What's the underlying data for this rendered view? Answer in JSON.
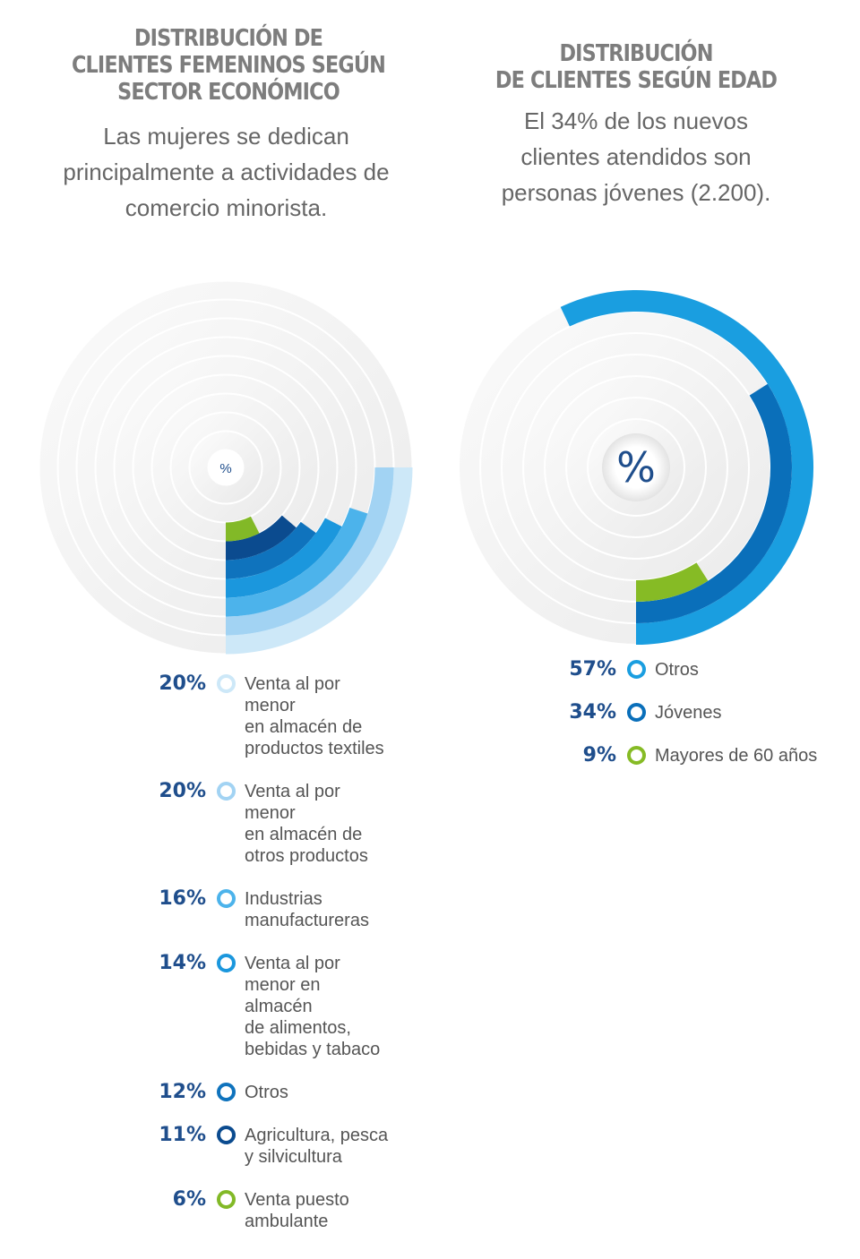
{
  "chart_data": [
    {
      "type": "radial-bar",
      "title_lines": [
        "DISTRIBUCIÓN DE",
        "CLIENTES FEMENINOS SEGÚN",
        "SECTOR ECONÓMICO"
      ],
      "subtitle_lines": [
        "Las mujeres se dedican",
        "principalmente a actividades de",
        "comercio minorista."
      ],
      "center_label": "%",
      "unit": "%",
      "series": [
        {
          "label_lines": [
            "Venta al por",
            "menor",
            "en almacén de",
            "productos textiles"
          ],
          "value": 20,
          "color": "#cde8f8"
        },
        {
          "label_lines": [
            "Venta al por",
            "menor",
            "en almacén de",
            "otros productos"
          ],
          "value": 20,
          "color": "#a2d3f3"
        },
        {
          "label_lines": [
            "Industrias",
            "manufactureras"
          ],
          "value": 16,
          "color": "#4cb3eb"
        },
        {
          "label_lines": [
            "Venta al por",
            "menor en",
            "almacén",
            "de alimentos,",
            "bebidas y tabaco"
          ],
          "value": 14,
          "color": "#1b97dd"
        },
        {
          "label_lines": [
            "Otros"
          ],
          "value": 12,
          "color": "#0f73bd"
        },
        {
          "label_lines": [
            "Agricultura, pesca",
            "y silvicultura"
          ],
          "value": 11,
          "color": "#0b4b8f"
        },
        {
          "label_lines": [
            "Venta puesto",
            "ambulante"
          ],
          "value": 6,
          "color": "#82b927"
        }
      ]
    },
    {
      "type": "radial-bar",
      "title_lines": [
        "DISTRIBUCIÓN",
        "DE CLIENTES SEGÚN EDAD"
      ],
      "subtitle_lines": [
        "El 34% de los nuevos",
        "clientes atendidos son",
        "personas jóvenes (2.200)."
      ],
      "center_label": "%",
      "unit": "%",
      "series": [
        {
          "label_lines": [
            "Otros"
          ],
          "value": 57,
          "color": "#1a9ee0"
        },
        {
          "label_lines": [
            "Jóvenes"
          ],
          "value": 34,
          "color": "#0a6fba"
        },
        {
          "label_lines": [
            "Mayores de 60 años"
          ],
          "value": 9,
          "color": "#86bb25"
        }
      ]
    }
  ],
  "colors": {
    "guide_ring": "#ebebeb",
    "percent_text": "#1f4e8c",
    "title": "#7d7d7d",
    "label": "#555555"
  }
}
